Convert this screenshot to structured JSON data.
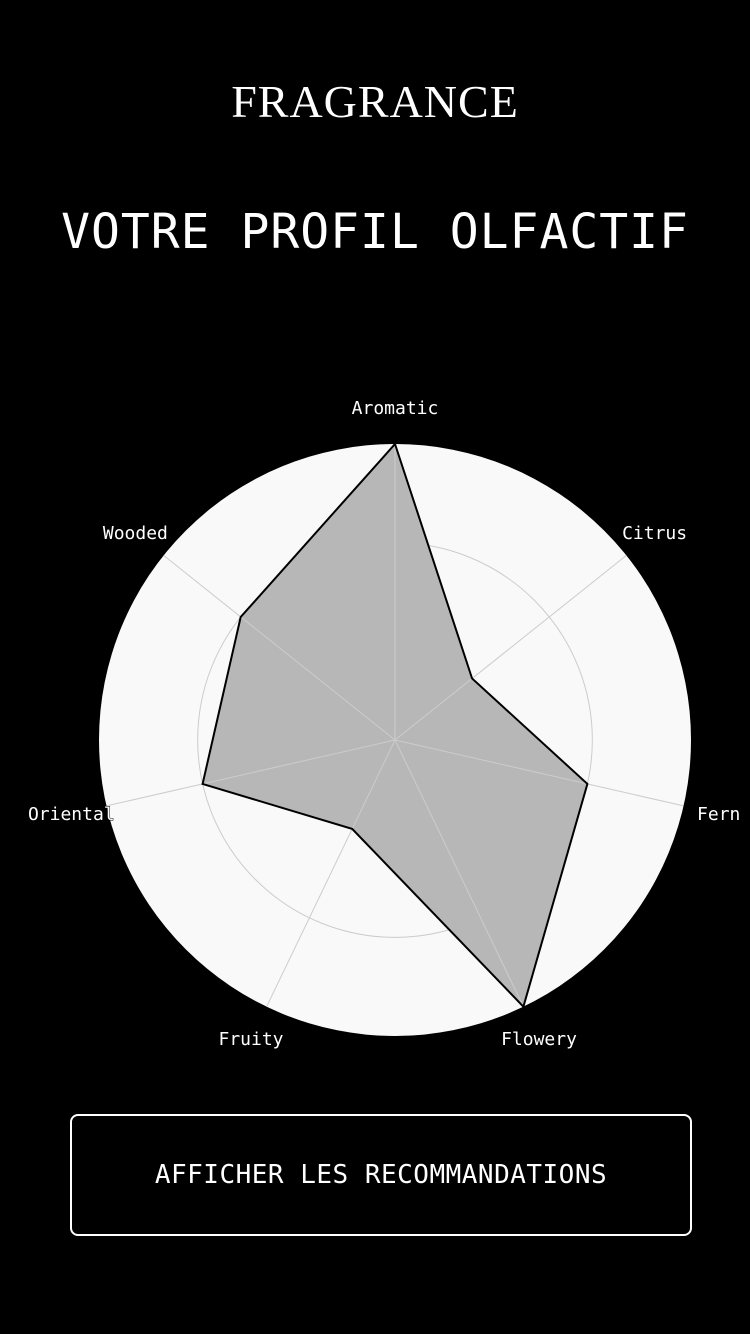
{
  "header": {
    "brand": "FRAGRANCE",
    "title": "VOTRE PROFIL OLFACTIF"
  },
  "chart_data": {
    "type": "radar",
    "title": "",
    "axes": [
      "Aromatic",
      "Citrus",
      "Fern",
      "Flowery",
      "Fruity",
      "Oriental",
      "Wooded"
    ],
    "values": [
      3,
      1,
      2,
      3,
      1,
      2,
      2
    ],
    "range": [
      0,
      3
    ],
    "rings": [
      1,
      2,
      3
    ],
    "grid": true,
    "legend": "none",
    "colors": {
      "background_disc": "#f9f9f9",
      "grid": "#cccccc",
      "fill": "#b7b7b7",
      "outline": "#000000"
    }
  },
  "actions": {
    "show_recommendations": "AFFICHER LES RECOMMANDATIONS"
  }
}
